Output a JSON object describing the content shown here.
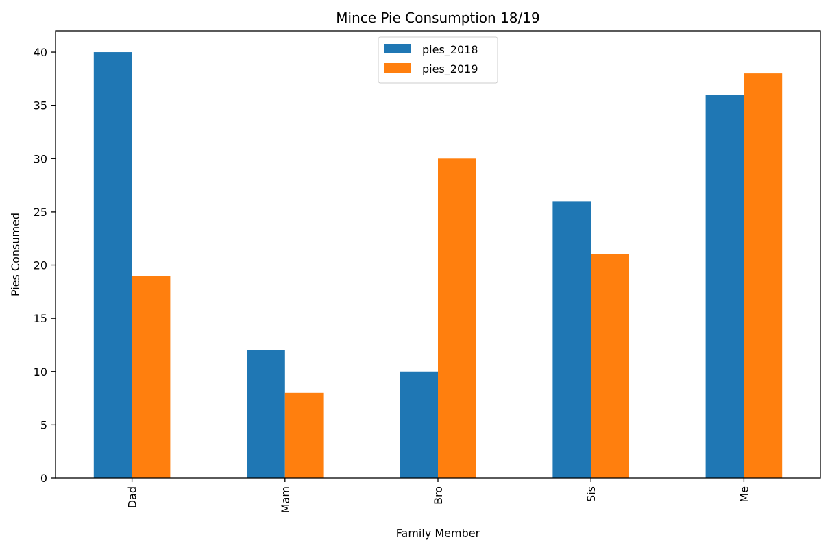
{
  "chart_data": {
    "type": "bar",
    "title": "Mince Pie Consumption 18/19",
    "xlabel": "Family Member",
    "ylabel": "Pies Consumed",
    "categories": [
      "Dad",
      "Mam",
      "Bro",
      "Sis",
      "Me"
    ],
    "series": [
      {
        "name": "pies_2018",
        "color": "#1f77b4",
        "values": [
          40,
          12,
          10,
          26,
          36
        ]
      },
      {
        "name": "pies_2019",
        "color": "#ff7f0e",
        "values": [
          19,
          8,
          30,
          21,
          38
        ]
      }
    ],
    "ylim": [
      0,
      42
    ],
    "yticks": [
      "0",
      "5",
      "10",
      "15",
      "20",
      "25",
      "30",
      "35",
      "40"
    ],
    "grid": false,
    "legend_position": "top-center"
  }
}
